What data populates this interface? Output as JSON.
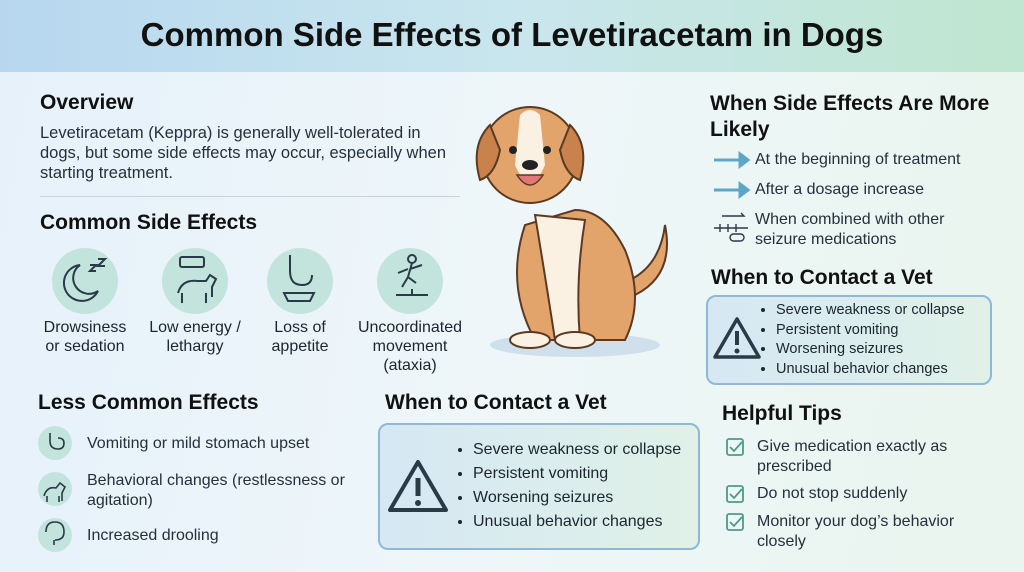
{
  "header": {
    "title": "Common Side Effects of Levetiracetam in Dogs"
  },
  "overview": {
    "title": "Overview",
    "text": "Levetiracetam (Keppra) is generally well-tolerated in dogs, but some side effects may occur, especially when starting treatment."
  },
  "common_side_effects": {
    "title": "Common Side Effects",
    "items": [
      "Drowsiness or sedation",
      "Low energy / lethargy",
      "Loss of appetite",
      "Uncoordinated movement (ataxia)"
    ]
  },
  "less_common_effects": {
    "title": "Less Common Effects",
    "items": [
      "Vomiting or mild stomach upset",
      "Behavioral changes (restlessness or agitation)",
      "Increased drooling"
    ]
  },
  "contact_vet_center": {
    "title": "When to Contact a Vet",
    "items": [
      "Severe weakness or collapse",
      "Persistent vomiting",
      "Worsening seizures",
      "Unusual behavior changes"
    ]
  },
  "side_effects_more_likely": {
    "title": "When Side Effects Are More Likely",
    "items": [
      "At the beginning of treatment",
      "After a dosage increase",
      "When combined with other seizure medications"
    ]
  },
  "contact_vet_right": {
    "title": "When to Contact a Vet",
    "items": [
      "Severe weakness or collapse",
      "Persistent vomiting",
      "Worsening seizures",
      "Unusual behavior changes"
    ]
  },
  "helpful_tips": {
    "title": "Helpful Tips",
    "items": [
      "Give medication exactly as prescribed",
      "Do not stop suddenly",
      "Monitor your dog’s behavior closely"
    ]
  }
}
